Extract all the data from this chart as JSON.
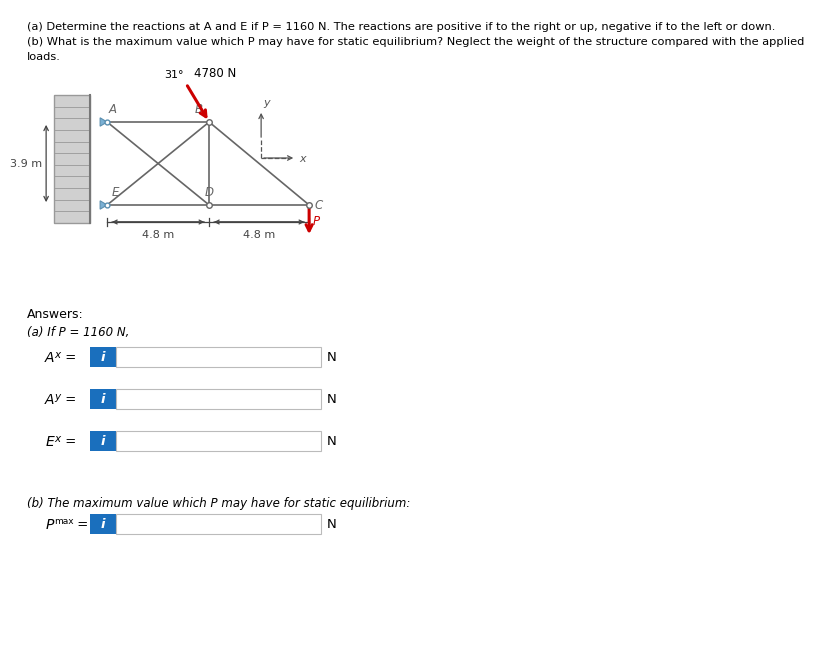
{
  "bg_color": "#ffffff",
  "text_color": "#000000",
  "dim_color": "#444444",
  "structure_color": "#666666",
  "force_color": "#cc0000",
  "wall_face_color": "#d0d0d0",
  "wall_edge_color": "#999999",
  "pin_color": "#7ab0d4",
  "input_box_color": "#1a6fbd",
  "input_text_color": "#ffffff",
  "title_a": "(a) Determine the reactions at A and E if P = 1160 N. The reactions are positive if to the right or up, negative if to the left or down.",
  "title_b1": "(b) What is the maximum value which P may have for static equilibrium? Neglect the weight of the structure compared with the applied",
  "title_b2": "loads.",
  "answers_label": "Answers:",
  "parta_label": "(a) If P = 1160 N,",
  "partb_label": "(b) The maximum value which P may have for static equilibrium:",
  "unit_N": "N",
  "info_text": "i",
  "dim_39": "3.9 m",
  "dim_48a": "4.8 m",
  "dim_48b": "4.8 m",
  "force_label": "4780 N",
  "angle_label": "31",
  "node_A": "A",
  "node_B": "B",
  "node_C": "C",
  "node_D": "D",
  "node_E": "E",
  "axis_x": "x",
  "axis_y": "y",
  "force_P": "P",
  "label_Ax": "A",
  "sub_Ax": "x",
  "label_Ay": "A",
  "sub_Ay": "y",
  "label_Ex": "E",
  "sub_Ex": "x",
  "label_Pmax": "P",
  "sub_Pmax": "max"
}
